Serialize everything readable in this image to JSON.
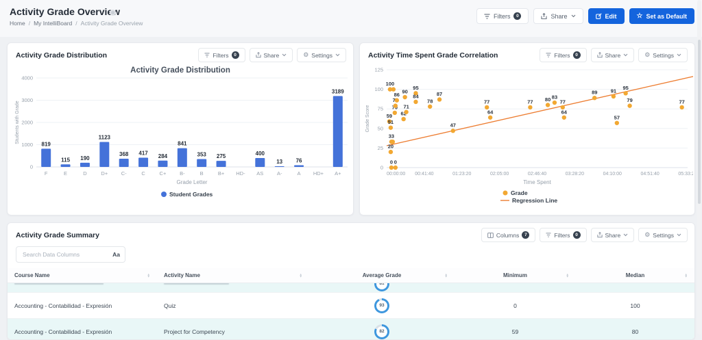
{
  "page": {
    "title": "Activity Grade Overview",
    "breadcrumb": [
      "Home",
      "My IntelliBoard",
      "Activity Grade Overview"
    ],
    "actions": {
      "filters": "Filters",
      "filters_badge": "0",
      "share": "Share",
      "edit": "Edit",
      "set_default": "Set as Default"
    }
  },
  "panels": {
    "distribution": {
      "title": "Activity Grade Distribution",
      "filters": "Filters",
      "filters_badge": "0",
      "share": "Share",
      "settings": "Settings"
    },
    "correlation": {
      "title": "Activity Time Spent Grade Correlation",
      "filters": "Filters",
      "filters_badge": "0",
      "share": "Share",
      "settings": "Settings"
    },
    "summary": {
      "title": "Activity Grade Summary",
      "search_placeholder": "Search Data Columns",
      "match_case": "Aa",
      "columns_btn": "Columns",
      "columns_badge": "7",
      "filters": "Filters",
      "filters_badge": "0",
      "share": "Share",
      "settings": "Settings"
    }
  },
  "chart_data": [
    {
      "type": "bar",
      "title": "Activity Grade Distribution",
      "categories": [
        "F",
        "E",
        "D",
        "D+",
        "C-",
        "C",
        "C+",
        "B-",
        "B",
        "B+",
        "HD-",
        "AS",
        "A-",
        "A",
        "HD+",
        "A+"
      ],
      "values": [
        819,
        115,
        190,
        1123,
        368,
        417,
        284,
        841,
        353,
        275,
        0,
        400,
        13,
        76,
        0,
        3189
      ],
      "xlabel": "Grade Letter",
      "ylabel": "Students with Grade",
      "ylim": [
        0,
        4000
      ],
      "yticks": [
        0,
        1000,
        2000,
        3000,
        4000
      ],
      "legend": [
        "Student Grades"
      ],
      "bar_color": "#4472d9",
      "grid": true
    },
    {
      "type": "scatter",
      "title": "Activity Time Spent Grade Correlation",
      "xlabel": "Time Spent",
      "ylabel": "Grade Score",
      "ylim": [
        0,
        125
      ],
      "yticks": [
        0,
        25,
        50,
        75,
        100,
        125
      ],
      "xlim_seconds": [
        0,
        20000
      ],
      "xticks_seconds": [
        0,
        2500,
        5000,
        7500,
        10000,
        12500,
        15000,
        17500,
        20000
      ],
      "xticks": [
        "00:00:00",
        "00:41:40",
        "01:23:20",
        "02:05:00",
        "02:46:40",
        "03:28:20",
        "04:10:00",
        "04:51:40",
        "05:33:20"
      ],
      "legend": [
        "Grade",
        "Regression Line"
      ],
      "point_color": "#f2a832",
      "line_color": "#ed7d31",
      "points": [
        {
          "x": 225,
          "y": 100,
          "label": "100"
        },
        {
          "x": 450,
          "y": 100,
          "label": ""
        },
        {
          "x": 180,
          "y": 59,
          "label": "59"
        },
        {
          "x": 270,
          "y": 51,
          "label": "51"
        },
        {
          "x": 270,
          "y": 20,
          "label": "20"
        },
        {
          "x": 315,
          "y": 33,
          "label": "33"
        },
        {
          "x": 405,
          "y": 33,
          "label": ""
        },
        {
          "x": 315,
          "y": 0,
          "label": "0"
        },
        {
          "x": 585,
          "y": 0,
          "label": "0"
        },
        {
          "x": 540,
          "y": 70,
          "label": "70"
        },
        {
          "x": 585,
          "y": 79,
          "label": "79"
        },
        {
          "x": 675,
          "y": 86,
          "label": "86"
        },
        {
          "x": 1125,
          "y": 62,
          "label": "62"
        },
        {
          "x": 1215,
          "y": 90,
          "label": "90"
        },
        {
          "x": 1305,
          "y": 71,
          "label": "71"
        },
        {
          "x": 1935,
          "y": 95,
          "label": "95"
        },
        {
          "x": 1935,
          "y": 84,
          "label": "84"
        },
        {
          "x": 2880,
          "y": 78,
          "label": "78"
        },
        {
          "x": 3510,
          "y": 87,
          "label": "87"
        },
        {
          "x": 4410,
          "y": 47,
          "label": "47"
        },
        {
          "x": 6660,
          "y": 77,
          "label": "77"
        },
        {
          "x": 6885,
          "y": 64,
          "label": "64"
        },
        {
          "x": 9540,
          "y": 77,
          "label": "77"
        },
        {
          "x": 10710,
          "y": 80,
          "label": "80"
        },
        {
          "x": 11160,
          "y": 83,
          "label": "83"
        },
        {
          "x": 11700,
          "y": 77,
          "label": "77"
        },
        {
          "x": 11790,
          "y": 64,
          "label": "64"
        },
        {
          "x": 13815,
          "y": 89,
          "label": "89"
        },
        {
          "x": 15075,
          "y": 91,
          "label": "91"
        },
        {
          "x": 15300,
          "y": 57,
          "label": "57"
        },
        {
          "x": 15885,
          "y": 95,
          "label": "95"
        },
        {
          "x": 16155,
          "y": 79,
          "label": "79"
        },
        {
          "x": 19620,
          "y": 77,
          "label": "77"
        }
      ],
      "regression": {
        "x1": 0,
        "y1": 28,
        "x2": 20500,
        "y2": 117
      }
    }
  ],
  "table": {
    "columns": [
      "Course Name",
      "Activity Name",
      "Average Grade",
      "Minimum",
      "Median"
    ],
    "rows": [
      {
        "partial": true,
        "course": "",
        "activity": "",
        "avg": "81",
        "min": "",
        "median": ""
      },
      {
        "partial": false,
        "course": "Accounting - Contabilidad - Expresión",
        "activity": "Quiz",
        "avg": "93",
        "min": "0",
        "median": "100"
      },
      {
        "partial": false,
        "course": "Accounting - Contabilidad - Expresión",
        "activity": "Project for Competency",
        "avg": "82",
        "min": "59",
        "median": "80"
      }
    ]
  }
}
